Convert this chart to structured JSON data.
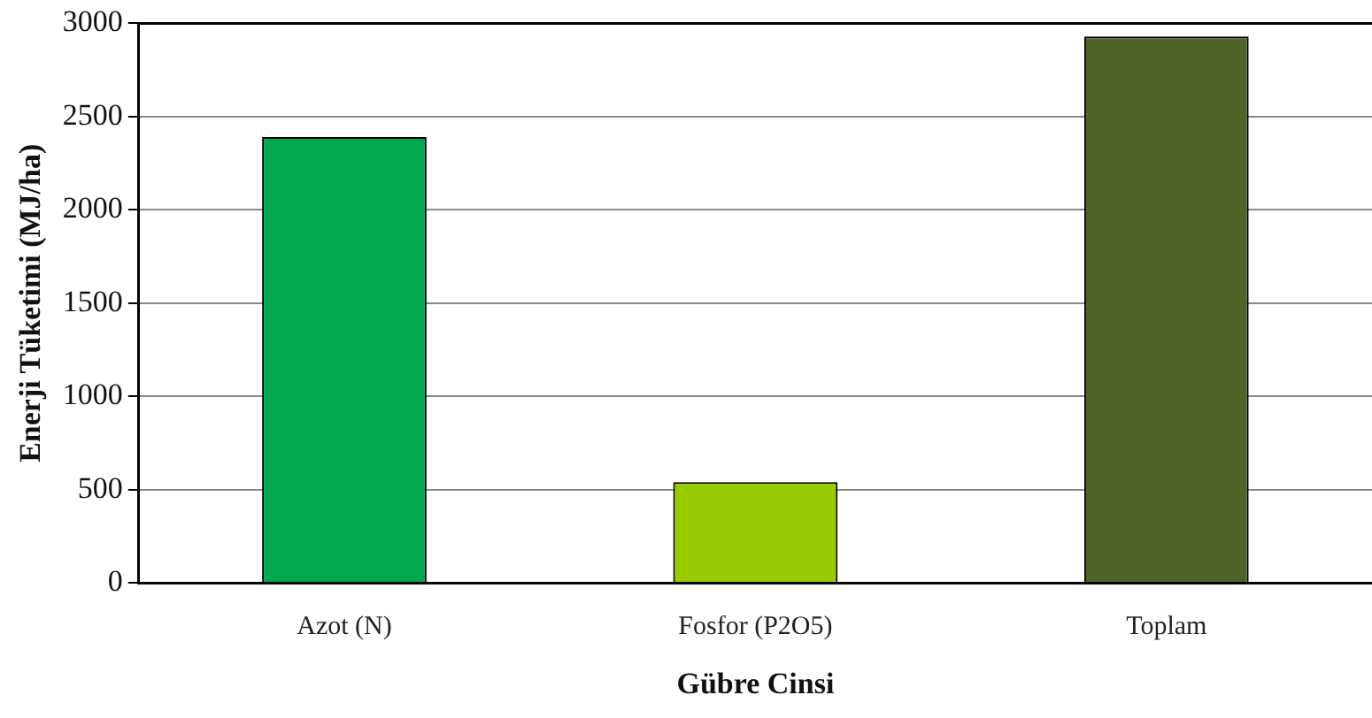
{
  "chart_data": {
    "type": "bar",
    "xlabel": "Gübre Cinsi",
    "ylabel": "Enerji Tüketimi (MJ/ha)",
    "categories": [
      "Azot (N)",
      "Fosfor (P2O5)",
      "Toplam"
    ],
    "values": [
      2390,
      540,
      2930
    ],
    "colors": [
      "#00a84f",
      "#99cc00",
      "#4f6228"
    ],
    "ylim": [
      0,
      3000
    ],
    "yticks": [
      0,
      500,
      1000,
      1500,
      2000,
      2500,
      3000
    ],
    "grid": "y",
    "legend": false
  }
}
